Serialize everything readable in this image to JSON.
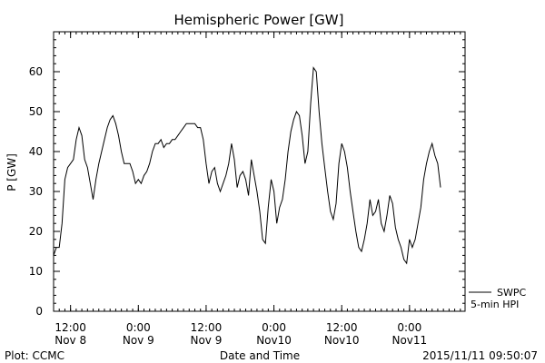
{
  "chart_data": {
    "type": "line",
    "title": "Hemispheric Power [GW]",
    "ylabel": "P [GW]",
    "xlabel": "Date and Time",
    "ylim": [
      0,
      70
    ],
    "yticks": [
      0,
      10,
      20,
      30,
      40,
      50,
      60
    ],
    "xlim": [
      "2015-11-08 09:00",
      "2015-11-11 09:50"
    ],
    "x_tick_labels": [
      {
        "time": "2015-11-08 12:00",
        "line1": "12:00",
        "line2": "Nov 8"
      },
      {
        "time": "2015-11-09 00:00",
        "line1": "0:00",
        "line2": "Nov 9"
      },
      {
        "time": "2015-11-09 12:00",
        "line1": "12:00",
        "line2": "Nov 9"
      },
      {
        "time": "2015-11-10 00:00",
        "line1": "0:00",
        "line2": "Nov10"
      },
      {
        "time": "2015-11-10 12:00",
        "line1": "12:00",
        "line2": "Nov10"
      },
      {
        "time": "2015-11-11 00:00",
        "line1": "0:00",
        "line2": "Nov11"
      }
    ],
    "legend": {
      "placement": "bottom-right",
      "entries": [
        "SWPC",
        "5-min HPI"
      ]
    },
    "grid": false,
    "series": [
      {
        "name": "SWPC",
        "points": [
          [
            "2015-11-08 09:00",
            14
          ],
          [
            "2015-11-08 09:30",
            16
          ],
          [
            "2015-11-08 10:00",
            16
          ],
          [
            "2015-11-08 10:30",
            22
          ],
          [
            "2015-11-08 11:00",
            33
          ],
          [
            "2015-11-08 11:30",
            36
          ],
          [
            "2015-11-08 12:00",
            37
          ],
          [
            "2015-11-08 12:30",
            38
          ],
          [
            "2015-11-08 13:00",
            43
          ],
          [
            "2015-11-08 13:30",
            46
          ],
          [
            "2015-11-08 14:00",
            44
          ],
          [
            "2015-11-08 14:30",
            38
          ],
          [
            "2015-11-08 15:00",
            36
          ],
          [
            "2015-11-08 15:30",
            32
          ],
          [
            "2015-11-08 16:00",
            28
          ],
          [
            "2015-11-08 16:30",
            33
          ],
          [
            "2015-11-08 17:00",
            37
          ],
          [
            "2015-11-08 17:30",
            40
          ],
          [
            "2015-11-08 18:00",
            43
          ],
          [
            "2015-11-08 18:30",
            46
          ],
          [
            "2015-11-08 19:00",
            48
          ],
          [
            "2015-11-08 19:30",
            49
          ],
          [
            "2015-11-08 20:00",
            47
          ],
          [
            "2015-11-08 20:30",
            44
          ],
          [
            "2015-11-08 21:00",
            40
          ],
          [
            "2015-11-08 21:30",
            37
          ],
          [
            "2015-11-08 22:00",
            37
          ],
          [
            "2015-11-08 22:30",
            37
          ],
          [
            "2015-11-08 23:00",
            35
          ],
          [
            "2015-11-08 23:30",
            32
          ],
          [
            "2015-11-09 00:00",
            33
          ],
          [
            "2015-11-09 00:30",
            32
          ],
          [
            "2015-11-09 01:00",
            34
          ],
          [
            "2015-11-09 01:30",
            35
          ],
          [
            "2015-11-09 02:00",
            37
          ],
          [
            "2015-11-09 02:30",
            40
          ],
          [
            "2015-11-09 03:00",
            42
          ],
          [
            "2015-11-09 03:30",
            42
          ],
          [
            "2015-11-09 04:00",
            43
          ],
          [
            "2015-11-09 04:30",
            41
          ],
          [
            "2015-11-09 05:00",
            42
          ],
          [
            "2015-11-09 05:30",
            42
          ],
          [
            "2015-11-09 06:00",
            43
          ],
          [
            "2015-11-09 06:30",
            43
          ],
          [
            "2015-11-09 07:00",
            44
          ],
          [
            "2015-11-09 07:30",
            45
          ],
          [
            "2015-11-09 08:00",
            46
          ],
          [
            "2015-11-09 08:30",
            47
          ],
          [
            "2015-11-09 09:00",
            47
          ],
          [
            "2015-11-09 09:30",
            47
          ],
          [
            "2015-11-09 10:00",
            47
          ],
          [
            "2015-11-09 10:30",
            46
          ],
          [
            "2015-11-09 11:00",
            46
          ],
          [
            "2015-11-09 11:30",
            43
          ],
          [
            "2015-11-09 12:00",
            37
          ],
          [
            "2015-11-09 12:30",
            32
          ],
          [
            "2015-11-09 13:00",
            35
          ],
          [
            "2015-11-09 13:30",
            36
          ],
          [
            "2015-11-09 14:00",
            32
          ],
          [
            "2015-11-09 14:30",
            30
          ],
          [
            "2015-11-09 15:00",
            32
          ],
          [
            "2015-11-09 15:30",
            34
          ],
          [
            "2015-11-09 16:00",
            37
          ],
          [
            "2015-11-09 16:30",
            42
          ],
          [
            "2015-11-09 17:00",
            38
          ],
          [
            "2015-11-09 17:30",
            31
          ],
          [
            "2015-11-09 18:00",
            34
          ],
          [
            "2015-11-09 18:30",
            35
          ],
          [
            "2015-11-09 19:00",
            33
          ],
          [
            "2015-11-09 19:30",
            29
          ],
          [
            "2015-11-09 20:00",
            38
          ],
          [
            "2015-11-09 20:30",
            34
          ],
          [
            "2015-11-09 21:00",
            30
          ],
          [
            "2015-11-09 21:30",
            25
          ],
          [
            "2015-11-09 22:00",
            18
          ],
          [
            "2015-11-09 22:30",
            17
          ],
          [
            "2015-11-09 23:00",
            26
          ],
          [
            "2015-11-09 23:30",
            33
          ],
          [
            "2015-11-10 00:00",
            30
          ],
          [
            "2015-11-10 00:30",
            22
          ],
          [
            "2015-11-10 01:00",
            26
          ],
          [
            "2015-11-10 01:30",
            28
          ],
          [
            "2015-11-10 02:00",
            33
          ],
          [
            "2015-11-10 02:30",
            40
          ],
          [
            "2015-11-10 03:00",
            45
          ],
          [
            "2015-11-10 03:30",
            48
          ],
          [
            "2015-11-10 04:00",
            50
          ],
          [
            "2015-11-10 04:30",
            49
          ],
          [
            "2015-11-10 05:00",
            44
          ],
          [
            "2015-11-10 05:30",
            37
          ],
          [
            "2015-11-10 06:00",
            40
          ],
          [
            "2015-11-10 06:30",
            52
          ],
          [
            "2015-11-10 07:00",
            61
          ],
          [
            "2015-11-10 07:30",
            60
          ],
          [
            "2015-11-10 08:00",
            50
          ],
          [
            "2015-11-10 08:30",
            42
          ],
          [
            "2015-11-10 09:00",
            36
          ],
          [
            "2015-11-10 09:30",
            30
          ],
          [
            "2015-11-10 10:00",
            25
          ],
          [
            "2015-11-10 10:30",
            23
          ],
          [
            "2015-11-10 11:00",
            27
          ],
          [
            "2015-11-10 11:30",
            37
          ],
          [
            "2015-11-10 12:00",
            42
          ],
          [
            "2015-11-10 12:30",
            40
          ],
          [
            "2015-11-10 13:00",
            36
          ],
          [
            "2015-11-10 13:30",
            30
          ],
          [
            "2015-11-10 14:00",
            25
          ],
          [
            "2015-11-10 14:30",
            20
          ],
          [
            "2015-11-10 15:00",
            16
          ],
          [
            "2015-11-10 15:30",
            15
          ],
          [
            "2015-11-10 16:00",
            18
          ],
          [
            "2015-11-10 16:30",
            22
          ],
          [
            "2015-11-10 17:00",
            28
          ],
          [
            "2015-11-10 17:30",
            24
          ],
          [
            "2015-11-10 18:00",
            25
          ],
          [
            "2015-11-10 18:30",
            28
          ],
          [
            "2015-11-10 19:00",
            22
          ],
          [
            "2015-11-10 19:30",
            20
          ],
          [
            "2015-11-10 20:00",
            24
          ],
          [
            "2015-11-10 20:30",
            29
          ],
          [
            "2015-11-10 21:00",
            27
          ],
          [
            "2015-11-10 21:30",
            21
          ],
          [
            "2015-11-10 22:00",
            18
          ],
          [
            "2015-11-10 22:30",
            16
          ],
          [
            "2015-11-10 23:00",
            13
          ],
          [
            "2015-11-10 23:30",
            12
          ],
          [
            "2015-11-11 00:00",
            18
          ],
          [
            "2015-11-11 00:30",
            16
          ],
          [
            "2015-11-11 01:00",
            18
          ],
          [
            "2015-11-11 01:30",
            22
          ],
          [
            "2015-11-11 02:00",
            26
          ],
          [
            "2015-11-11 02:30",
            33
          ],
          [
            "2015-11-11 03:00",
            37
          ],
          [
            "2015-11-11 03:30",
            40
          ],
          [
            "2015-11-11 04:00",
            42
          ],
          [
            "2015-11-11 04:30",
            39
          ],
          [
            "2015-11-11 05:00",
            37
          ],
          [
            "2015-11-11 05:30",
            31
          ]
        ]
      },
      {
        "name": "5-min HPI",
        "points": []
      }
    ]
  },
  "footer": {
    "left": "Plot: CCMC",
    "right": "2015/11/11 09:50:07"
  },
  "colors": {
    "line": "#000000",
    "background": "#ffffff"
  }
}
